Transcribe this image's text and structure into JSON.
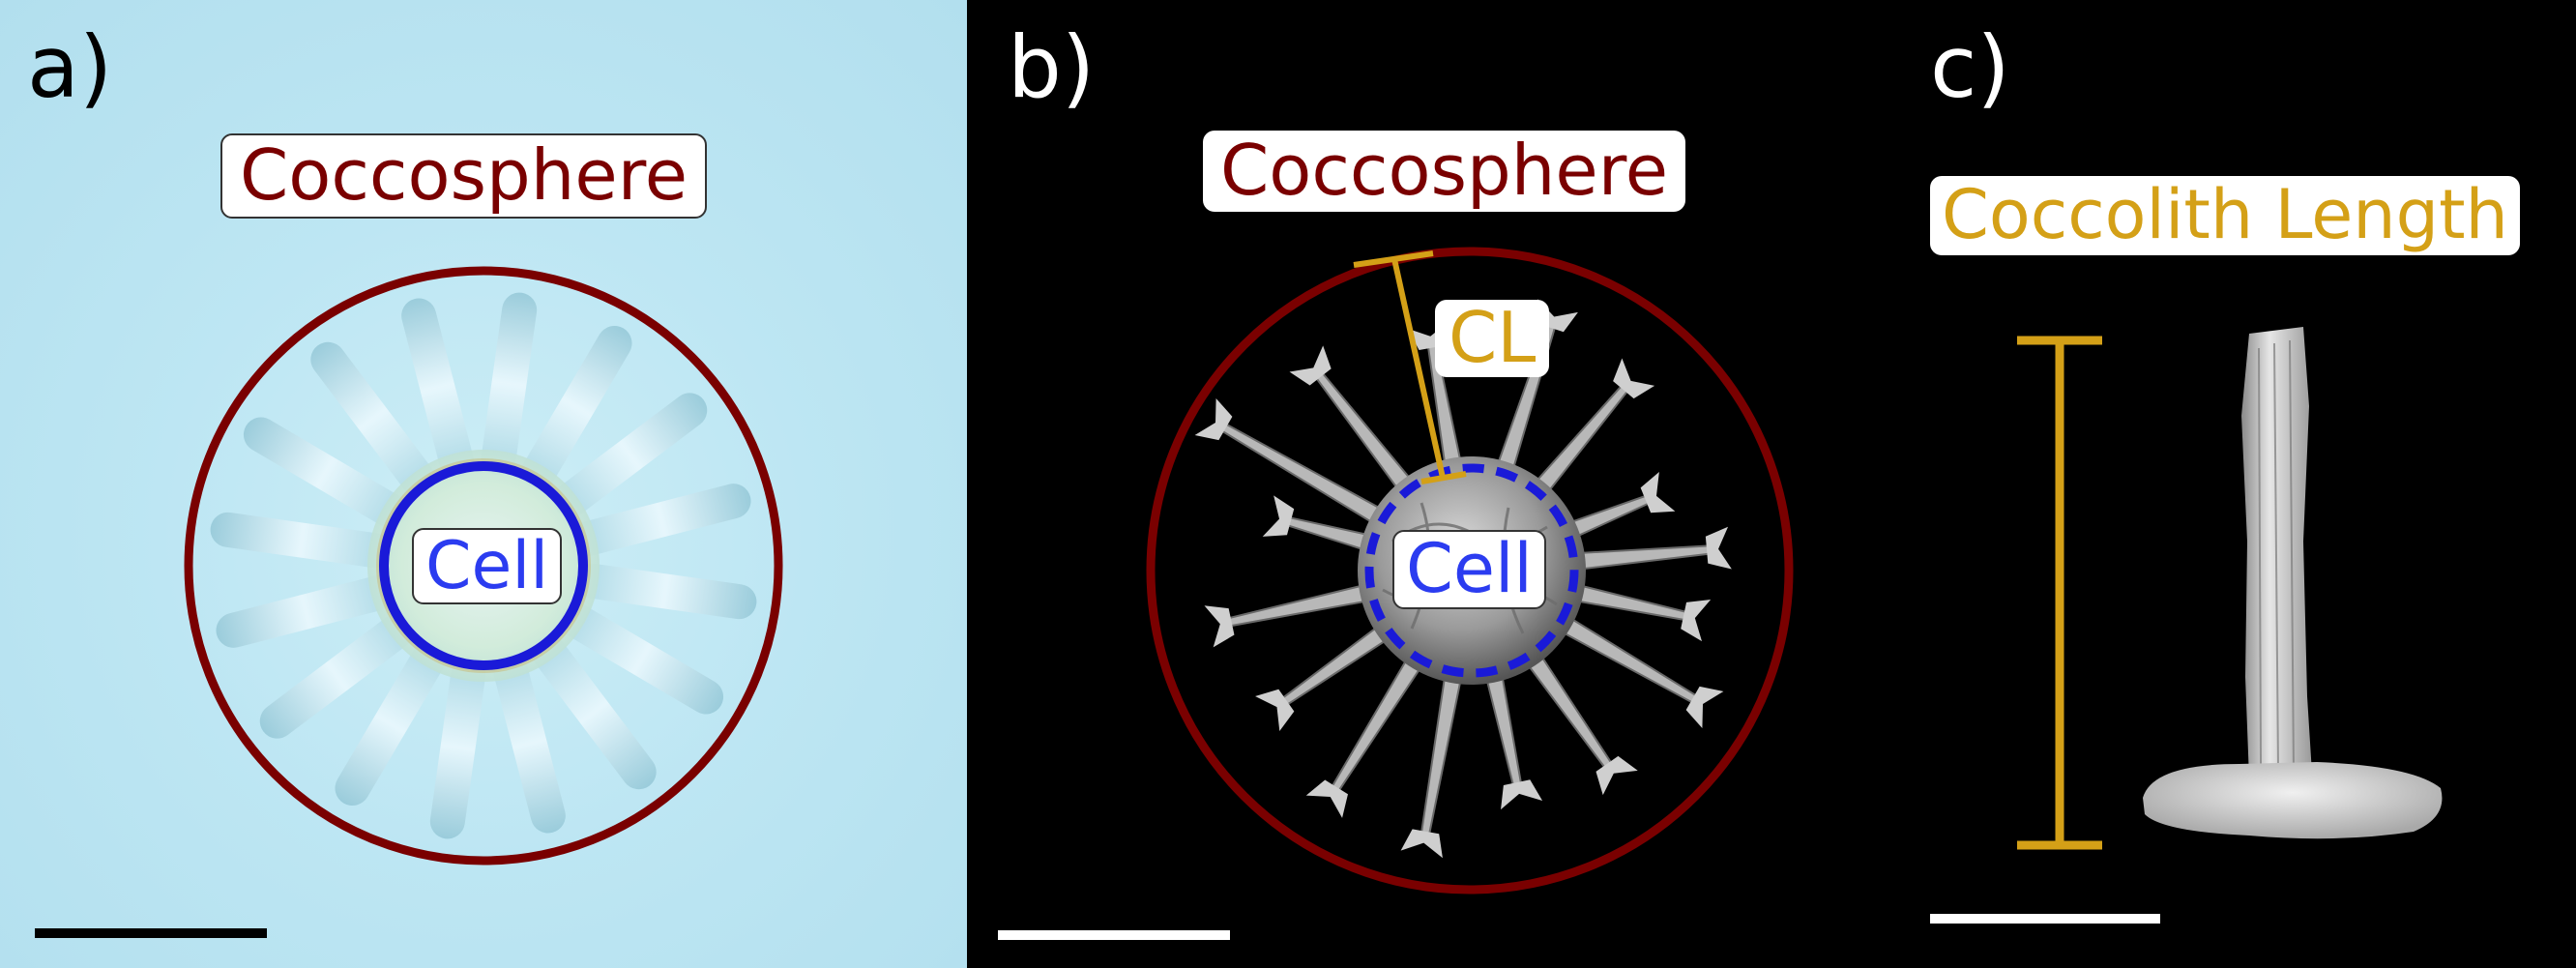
{
  "panels": {
    "a": {
      "label": "a)",
      "coccosphere_label": "Coccosphere",
      "cell_label": "Cell"
    },
    "b": {
      "label": "b)",
      "coccosphere_label": "Coccosphere",
      "cl_label": "CL",
      "cell_label": "Cell"
    },
    "c": {
      "label": "c)",
      "length_label": "Coccolith Length"
    }
  },
  "colors": {
    "coccosphere": "#7a0000",
    "cell": "#1a1ad8",
    "coccolith_length": "#d4a017",
    "scalebar_a": "#000000",
    "scalebar_bc": "#ffffff"
  }
}
